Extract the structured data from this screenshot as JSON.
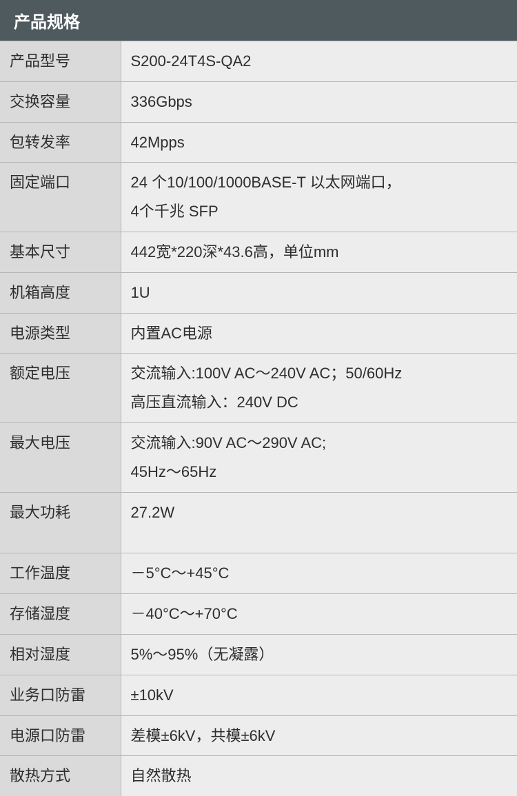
{
  "colors": {
    "header_bg": "#4f5a5f",
    "header_text": "#ffffff",
    "label_bg": "#dadada",
    "value_bg": "#ededed",
    "border": "#b6b6b6",
    "body_text": "#2e2e2e"
  },
  "header": "产品规格",
  "rows": [
    {
      "label": "产品型号",
      "value": "S200-24T4S-QA2"
    },
    {
      "label": "交换容量",
      "value": "336Gbps"
    },
    {
      "label": "包转发率",
      "value": "42Mpps"
    },
    {
      "label": "固定端口",
      "value": "24 个10/100/1000BASE-T 以太网端口，\n4个千兆 SFP"
    },
    {
      "label": "基本尺寸",
      "value": "442宽*220深*43.6高，单位mm"
    },
    {
      "label": "机箱高度",
      "value": "1U"
    },
    {
      "label": "电源类型",
      "value": "内置AC电源"
    },
    {
      "label": "额定电压",
      "value": "交流输入:100V AC～240V AC；50/60Hz\n高压直流输入：240V DC"
    },
    {
      "label": "最大电压",
      "value": "交流输入:90V AC～290V AC;\n45Hz～65Hz"
    },
    {
      "label": "最大功耗",
      "value": "27.2W",
      "tall": true
    },
    {
      "label": "工作温度",
      "value": "－5°C～+45°C"
    },
    {
      "label": "存储湿度",
      "value": "－40°C～+70°C"
    },
    {
      "label": "相对湿度",
      "value": "5%～95%（无凝露）"
    },
    {
      "label": "业务口防雷",
      "value": "±10kV"
    },
    {
      "label": "电源口防雷",
      "value": "差模±6kV，共模±6kV"
    },
    {
      "label": "散热方式",
      "value": "自然散热"
    }
  ]
}
